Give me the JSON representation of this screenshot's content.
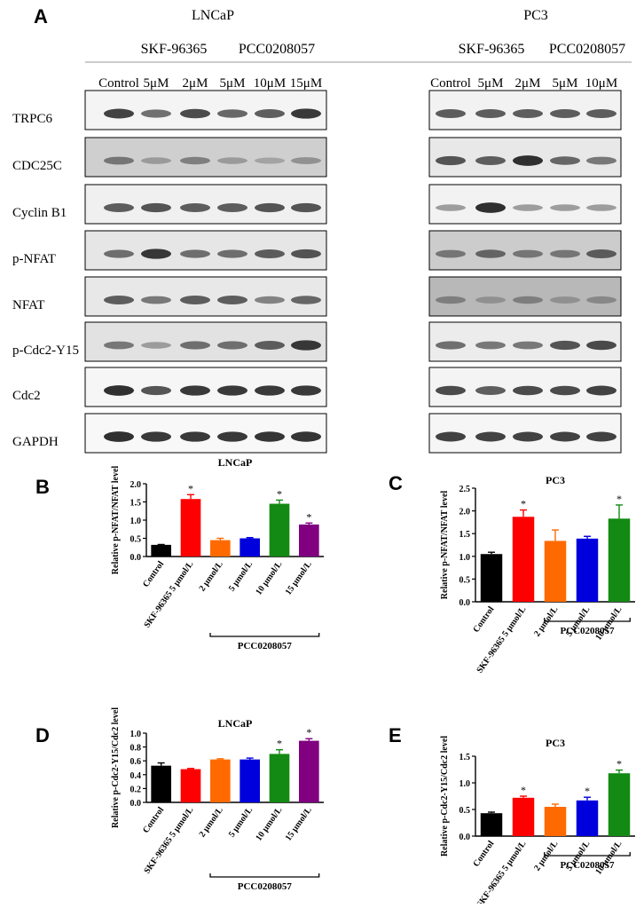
{
  "panel_labels": {
    "a": "A",
    "b": "B",
    "c": "C",
    "d": "D",
    "e": "E"
  },
  "blot": {
    "lncap": {
      "cell_line": "LNCaP",
      "drug1": "SKF-96365",
      "drug2": "PCC0208057",
      "lanes": [
        "Control",
        "5μM",
        "2μM",
        "5μM",
        "10μM",
        "15μM"
      ]
    },
    "pc3": {
      "cell_line": "PC3",
      "drug1": "SKF-96365",
      "drug2": "PCC0208057",
      "lanes": [
        "Control",
        "5μM",
        "2μM",
        "5μM",
        "10μM"
      ]
    },
    "rows": [
      "TRPC6",
      "CDC25C",
      "Cyclin B1",
      "p-NFAT",
      "NFAT",
      "p-Cdc2-Y15",
      "Cdc2",
      "GAPDH"
    ],
    "band_intensity": {
      "lncap": [
        [
          0.85,
          0.6,
          0.8,
          0.65,
          0.7,
          0.9
        ],
        [
          0.55,
          0.35,
          0.5,
          0.35,
          0.3,
          0.4
        ],
        [
          0.7,
          0.75,
          0.7,
          0.7,
          0.75,
          0.75
        ],
        [
          0.6,
          0.9,
          0.6,
          0.6,
          0.7,
          0.75
        ],
        [
          0.7,
          0.55,
          0.7,
          0.7,
          0.5,
          0.65
        ],
        [
          0.55,
          0.35,
          0.6,
          0.6,
          0.7,
          0.9
        ],
        [
          0.95,
          0.75,
          0.9,
          0.9,
          0.9,
          0.9
        ],
        [
          0.95,
          0.9,
          0.9,
          0.9,
          0.92,
          0.92
        ]
      ],
      "pc3": [
        [
          0.7,
          0.7,
          0.7,
          0.7,
          0.7
        ],
        [
          0.75,
          0.7,
          0.95,
          0.65,
          0.55
        ],
        [
          0.35,
          0.95,
          0.35,
          0.35,
          0.35
        ],
        [
          0.55,
          0.65,
          0.55,
          0.55,
          0.7
        ],
        [
          0.5,
          0.4,
          0.5,
          0.4,
          0.45
        ],
        [
          0.6,
          0.55,
          0.55,
          0.75,
          0.8
        ],
        [
          0.8,
          0.7,
          0.8,
          0.8,
          0.85
        ],
        [
          0.85,
          0.85,
          0.85,
          0.85,
          0.85
        ]
      ]
    }
  },
  "chart_data": [
    {
      "panel": "B",
      "type": "bar",
      "title": "LNCaP",
      "ylabel": "Relative p-NFAT/NFAT level",
      "ylim": [
        0,
        2.0
      ],
      "yticks": [
        "0.0",
        "0.5",
        "1.0",
        "1.5",
        "2.0"
      ],
      "categories": [
        "Control",
        "SKF-96365 5 μmol/L",
        "2 μmol/L",
        "5 μmol/L",
        "10 μmol/L",
        "15 μmol/L"
      ],
      "values": [
        0.32,
        1.58,
        0.45,
        0.5,
        1.45,
        0.88
      ],
      "errors": [
        0.01,
        0.12,
        0.05,
        0.02,
        0.1,
        0.04
      ],
      "significant": [
        "",
        "*",
        "",
        "",
        "*",
        "*"
      ],
      "colors": [
        "#000000",
        "#ff0000",
        "#ff6a00",
        "#0000dd",
        "#138a13",
        "#800080"
      ],
      "group_label": "PCC0208057",
      "group_span": [
        2,
        5
      ]
    },
    {
      "panel": "C",
      "type": "bar",
      "title": "PC3",
      "ylabel": "Relative p-NFAT/NFAT level",
      "ylim": [
        0,
        2.5
      ],
      "yticks": [
        "0.0",
        "0.5",
        "1.0",
        "1.5",
        "2.0",
        "2.5"
      ],
      "categories": [
        "Control",
        "SKF-96365 5 μmol/L",
        "2 μmol/L",
        "5 μmol/L",
        "10 μmol/L"
      ],
      "values": [
        1.05,
        1.87,
        1.34,
        1.39,
        1.83
      ],
      "errors": [
        0.04,
        0.15,
        0.24,
        0.05,
        0.3
      ],
      "significant": [
        "",
        "*",
        "",
        "",
        "*"
      ],
      "colors": [
        "#000000",
        "#ff0000",
        "#ff6a00",
        "#0000dd",
        "#138a13"
      ],
      "group_label": "PCC0208057",
      "group_span": [
        2,
        4
      ]
    },
    {
      "panel": "D",
      "type": "bar",
      "title": "LNCaP",
      "ylabel": "Relative p-Cdc2-Y15/Cdc2 level",
      "ylim": [
        0,
        1.0
      ],
      "yticks": [
        "0.0",
        "0.2",
        "0.4",
        "0.6",
        "0.8",
        "1.0"
      ],
      "categories": [
        "Control",
        "SKF-96365 5 μmol/L",
        "2 μmol/L",
        "5 μmol/L",
        "10 μmol/L",
        "15 μmol/L"
      ],
      "values": [
        0.53,
        0.48,
        0.62,
        0.62,
        0.7,
        0.89
      ],
      "errors": [
        0.04,
        0.01,
        0.01,
        0.02,
        0.06,
        0.03
      ],
      "significant": [
        "",
        "",
        "",
        "",
        "*",
        "*"
      ],
      "colors": [
        "#000000",
        "#ff0000",
        "#ff6a00",
        "#0000dd",
        "#138a13",
        "#800080"
      ],
      "group_label": "PCC0208057",
      "group_span": [
        2,
        5
      ]
    },
    {
      "panel": "E",
      "type": "bar",
      "title": "PC3",
      "ylabel": "Relative p-Cdc2-Y15/Cdc2 level",
      "ylim": [
        0,
        1.5
      ],
      "yticks": [
        "0.0",
        "0.5",
        "1.0",
        "1.5"
      ],
      "categories": [
        "Control",
        "SKF-96365 5 μmol/L",
        "2 μmol/L",
        "5 μmol/L",
        "10 μmol/L"
      ],
      "values": [
        0.43,
        0.72,
        0.55,
        0.67,
        1.18
      ],
      "errors": [
        0.02,
        0.03,
        0.05,
        0.06,
        0.06
      ],
      "significant": [
        "",
        "*",
        "",
        "*",
        "*"
      ],
      "colors": [
        "#000000",
        "#ff0000",
        "#ff6a00",
        "#0000dd",
        "#138a13"
      ],
      "group_label": "PCC0208057",
      "group_span": [
        2,
        4
      ]
    }
  ]
}
